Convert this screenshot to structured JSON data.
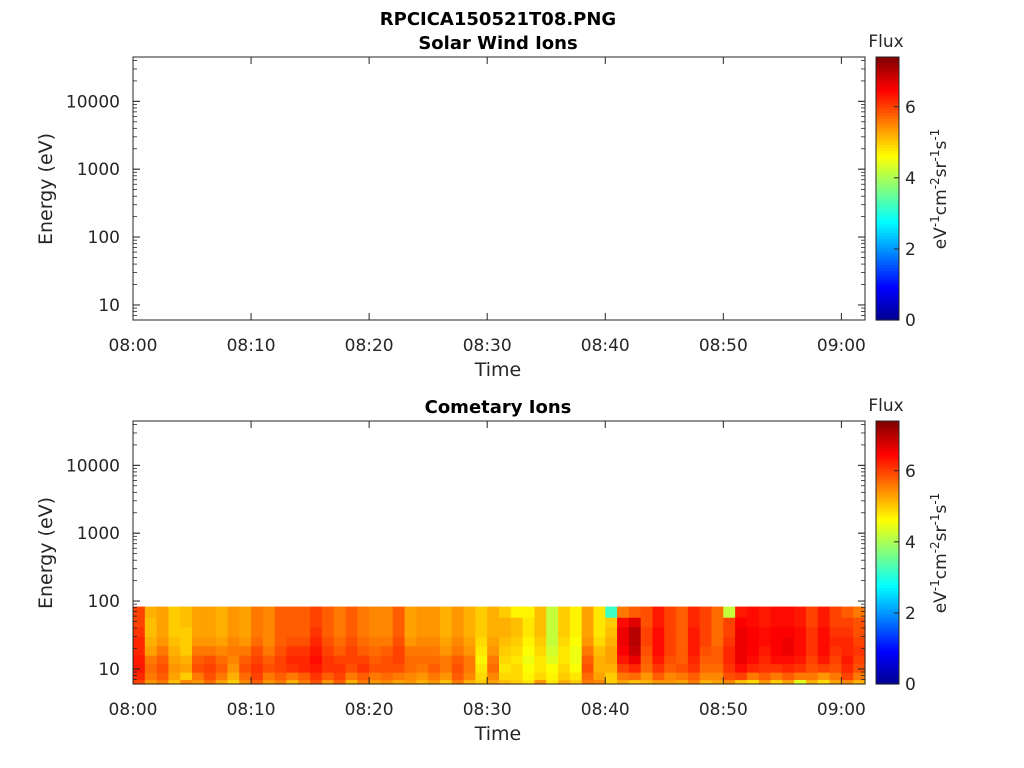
{
  "figure": {
    "title": "RPCICA150521T08.PNG"
  },
  "colormap": [
    "#00008f",
    "#0000ff",
    "#0080ff",
    "#00ffff",
    "#80ff80",
    "#ffff00",
    "#ff8000",
    "#ff0000",
    "#800000"
  ],
  "chart_data": [
    {
      "type": "heatmap",
      "title": "Solar Wind Ions",
      "xlabel": "Time",
      "ylabel": "Energy (eV)",
      "x_ticks": [
        "08:00",
        "08:10",
        "08:20",
        "08:30",
        "08:40",
        "08:50",
        "09:00"
      ],
      "xlim": [
        "08:00",
        "09:02"
      ],
      "y_scale": "log",
      "y_ticks": [
        "10",
        "100",
        "1000",
        "10000"
      ],
      "ylim": [
        6,
        45000
      ],
      "colorbar": {
        "label": "Flux",
        "unit": "eV-1cm-2sr-1s-1",
        "range": [
          0,
          7.4
        ],
        "ticks": [
          "0",
          "2",
          "4",
          "6"
        ]
      },
      "time_columns": [],
      "energy_bands_eV": [],
      "values": []
    },
    {
      "type": "heatmap",
      "title": "Cometary Ions",
      "xlabel": "Time",
      "ylabel": "Energy (eV)",
      "x_ticks": [
        "08:00",
        "08:10",
        "08:20",
        "08:30",
        "08:40",
        "08:50",
        "09:00"
      ],
      "xlim": [
        "08:00",
        "09:02"
      ],
      "y_scale": "log",
      "y_ticks": [
        "10",
        "100",
        "1000",
        "10000"
      ],
      "ylim": [
        6,
        45000
      ],
      "colorbar": {
        "label": "Flux",
        "unit": "eV-1cm-2sr-1s-1",
        "range": [
          0,
          7.4
        ],
        "ticks": [
          "0",
          "2",
          "4",
          "6"
        ]
      },
      "time_columns": [
        "08:00",
        "08:01",
        "08:02",
        "08:03",
        "08:04",
        "08:05",
        "08:06",
        "08:07",
        "08:08",
        "08:09",
        "08:10",
        "08:11",
        "08:12",
        "08:13",
        "08:14",
        "08:15",
        "08:16",
        "08:17",
        "08:18",
        "08:19",
        "08:20",
        "08:21",
        "08:22",
        "08:23",
        "08:24",
        "08:25",
        "08:26",
        "08:27",
        "08:28",
        "08:29",
        "08:30",
        "08:31",
        "08:32",
        "08:33",
        "08:34",
        "08:35",
        "08:36",
        "08:37",
        "08:38",
        "08:39",
        "08:40",
        "08:41",
        "08:42",
        "08:43",
        "08:44",
        "08:45",
        "08:46",
        "08:47",
        "08:48",
        "08:49",
        "08:50",
        "08:51",
        "08:52",
        "08:53",
        "08:54",
        "08:55",
        "08:56",
        "08:57",
        "08:58",
        "08:59",
        "09:00",
        "09:01"
      ],
      "energy_bands_eV": [
        [
          6,
          7
        ],
        [
          7,
          9
        ],
        [
          9,
          12
        ],
        [
          12,
          16
        ],
        [
          16,
          22
        ],
        [
          22,
          30
        ],
        [
          30,
          42
        ],
        [
          42,
          58
        ],
        [
          58,
          83
        ]
      ],
      "values": [
        [
          6.0,
          5.4,
          5.6,
          5.1,
          5.5,
          5.4,
          5.7,
          5.3,
          5.0,
          5.5,
          5.8,
          5.4,
          5.6,
          5.2,
          5.6,
          5.9,
          5.4,
          5.8,
          5.2,
          5.6,
          5.4,
          5.5,
          5.3,
          5.4,
          5.2,
          5.4,
          5.1,
          5.6,
          5.2,
          5.0,
          5.3,
          5.1,
          5.0,
          4.8,
          5.4,
          4.8,
          5.2,
          5.0,
          5.6,
          5.5,
          5.0,
          5.3,
          5.1,
          5.2,
          5.4,
          5.4,
          5.3,
          5.6,
          5.2,
          5.3,
          5.5,
          5.1,
          4.9,
          5.4,
          5.0,
          5.3,
          4.4,
          5.2,
          4.9,
          5.3,
          5.5,
          5.2
        ],
        [
          6.2,
          5.6,
          5.8,
          5.3,
          5.0,
          5.6,
          5.9,
          5.6,
          5.2,
          5.7,
          6.0,
          5.6,
          5.8,
          5.6,
          5.8,
          6.1,
          5.8,
          6.0,
          5.6,
          5.8,
          5.6,
          5.7,
          5.6,
          5.5,
          5.4,
          5.6,
          5.4,
          5.8,
          5.5,
          4.9,
          5.5,
          4.9,
          4.9,
          4.7,
          4.9,
          4.7,
          5.0,
          4.8,
          5.7,
          5.3,
          5.0,
          5.6,
          5.7,
          5.4,
          5.8,
          5.5,
          5.6,
          5.8,
          5.5,
          5.5,
          5.9,
          6.0,
          5.6,
          5.8,
          5.6,
          5.8,
          5.6,
          5.6,
          5.4,
          5.6,
          6.0,
          5.6
        ],
        [
          6.3,
          5.7,
          5.9,
          5.4,
          5.3,
          5.9,
          6.0,
          5.8,
          5.4,
          5.9,
          6.1,
          5.9,
          6.0,
          6.1,
          6.2,
          6.3,
          6.1,
          6.1,
          5.9,
          6.1,
          5.9,
          5.9,
          5.9,
          5.7,
          5.6,
          5.8,
          5.6,
          5.9,
          5.6,
          4.8,
          5.7,
          4.8,
          4.9,
          4.6,
          4.8,
          4.6,
          4.9,
          4.6,
          5.9,
          5.2,
          5.2,
          6.0,
          6.2,
          5.7,
          6.1,
          5.8,
          5.9,
          6.1,
          5.7,
          5.7,
          6.1,
          6.4,
          6.2,
          6.1,
          6.1,
          6.2,
          6.1,
          5.9,
          6.0,
          5.9,
          6.2,
          5.9
        ],
        [
          6.3,
          5.6,
          5.8,
          5.3,
          5.2,
          5.8,
          5.9,
          5.7,
          5.5,
          5.8,
          6.0,
          5.8,
          6.0,
          6.2,
          6.2,
          6.4,
          6.1,
          6.0,
          6.0,
          6.0,
          5.8,
          5.9,
          6.0,
          5.7,
          5.7,
          5.7,
          5.6,
          5.8,
          5.6,
          4.7,
          5.6,
          4.9,
          4.8,
          4.5,
          4.8,
          4.4,
          4.8,
          4.5,
          5.8,
          5.2,
          5.3,
          6.3,
          6.6,
          5.8,
          6.3,
          5.9,
          5.8,
          6.2,
          5.8,
          5.8,
          6.2,
          6.6,
          6.4,
          6.2,
          6.4,
          6.4,
          6.3,
          6.0,
          6.3,
          6.0,
          6.3,
          6.0
        ],
        [
          6.2,
          5.3,
          5.6,
          5.2,
          5.0,
          5.6,
          5.6,
          5.5,
          5.6,
          5.6,
          5.9,
          5.6,
          5.9,
          6.1,
          6.1,
          6.3,
          6.0,
          5.8,
          6.0,
          5.8,
          5.7,
          5.8,
          6.0,
          5.6,
          5.6,
          5.6,
          5.4,
          5.6,
          5.4,
          4.8,
          5.4,
          5.0,
          4.9,
          4.6,
          4.9,
          4.3,
          4.8,
          4.5,
          5.6,
          5.1,
          5.3,
          6.5,
          6.9,
          5.9,
          6.4,
          6.0,
          5.8,
          6.3,
          5.9,
          5.8,
          6.2,
          6.6,
          6.5,
          6.3,
          6.5,
          6.6,
          6.4,
          6.1,
          6.4,
          6.1,
          6.2,
          6.1
        ],
        [
          6.2,
          5.2,
          5.4,
          5.1,
          5.0,
          5.4,
          5.4,
          5.3,
          5.5,
          5.4,
          5.7,
          5.5,
          5.8,
          5.9,
          5.9,
          6.2,
          5.9,
          5.7,
          5.9,
          5.7,
          5.6,
          5.6,
          5.9,
          5.4,
          5.5,
          5.5,
          5.3,
          5.5,
          5.3,
          4.9,
          5.3,
          5.1,
          5.0,
          4.7,
          5.0,
          4.2,
          4.9,
          4.6,
          5.4,
          4.9,
          5.2,
          6.6,
          7.0,
          6.0,
          6.4,
          6.0,
          5.8,
          6.3,
          6.0,
          5.7,
          6.1,
          6.6,
          6.5,
          6.4,
          6.5,
          6.6,
          6.4,
          6.1,
          6.4,
          6.2,
          6.2,
          6.0
        ],
        [
          6.1,
          5.1,
          5.3,
          5.0,
          5.0,
          5.3,
          5.3,
          5.2,
          5.4,
          5.3,
          5.6,
          5.5,
          5.8,
          5.8,
          5.8,
          6.1,
          5.8,
          5.6,
          5.8,
          5.6,
          5.5,
          5.5,
          5.8,
          5.3,
          5.4,
          5.4,
          5.2,
          5.4,
          5.2,
          5.0,
          5.2,
          5.2,
          5.1,
          4.8,
          5.1,
          4.2,
          5.0,
          4.7,
          5.3,
          4.8,
          5.1,
          6.6,
          7.0,
          6.0,
          6.4,
          6.0,
          5.8,
          6.3,
          6.0,
          5.7,
          6.0,
          6.6,
          6.5,
          6.4,
          6.5,
          6.5,
          6.4,
          6.1,
          6.4,
          6.1,
          6.1,
          5.9
        ],
        [
          6.0,
          5.1,
          5.3,
          5.0,
          5.1,
          5.3,
          5.3,
          5.2,
          5.4,
          5.3,
          5.6,
          5.5,
          5.8,
          5.8,
          5.8,
          6.0,
          5.8,
          5.6,
          5.8,
          5.6,
          5.5,
          5.5,
          5.8,
          5.3,
          5.4,
          5.4,
          5.2,
          5.4,
          5.2,
          5.0,
          5.2,
          5.2,
          5.1,
          4.8,
          5.1,
          4.2,
          5.0,
          4.7,
          5.3,
          4.8,
          5.0,
          6.4,
          6.7,
          5.9,
          6.3,
          6.0,
          5.8,
          6.2,
          6.0,
          5.7,
          6.0,
          6.5,
          6.4,
          6.3,
          6.4,
          6.4,
          6.3,
          6.0,
          6.3,
          6.0,
          6.0,
          5.9
        ],
        [
          6.0,
          5.2,
          5.3,
          5.0,
          5.1,
          5.3,
          5.3,
          5.2,
          5.4,
          5.3,
          5.6,
          5.5,
          5.8,
          5.8,
          5.8,
          6.0,
          5.8,
          5.6,
          5.8,
          5.6,
          5.5,
          5.5,
          5.8,
          5.3,
          5.4,
          5.4,
          5.2,
          5.4,
          5.2,
          5.0,
          5.2,
          5.0,
          4.7,
          4.7,
          5.1,
          4.2,
          5.0,
          4.7,
          5.3,
          4.8,
          3.2,
          5.6,
          5.8,
          5.9,
          6.3,
          6.0,
          5.8,
          6.2,
          6.0,
          5.7,
          4.2,
          6.3,
          6.4,
          6.3,
          6.4,
          6.4,
          6.3,
          6.0,
          6.3,
          6.0,
          5.8,
          5.6
        ]
      ]
    }
  ]
}
